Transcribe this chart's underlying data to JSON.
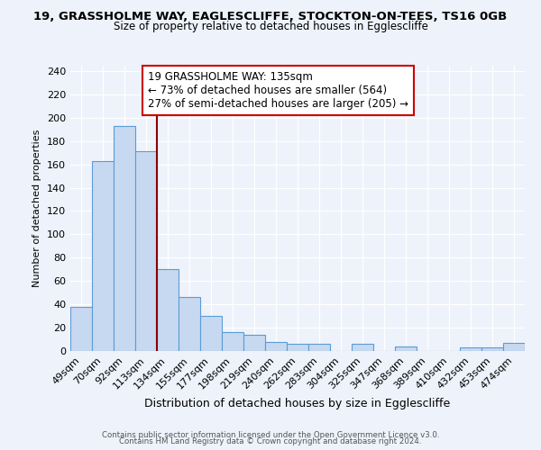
{
  "title1": "19, GRASSHOLME WAY, EAGLESCLIFFE, STOCKTON-ON-TEES, TS16 0GB",
  "title2": "Size of property relative to detached houses in Egglescliffe",
  "xlabel": "Distribution of detached houses by size in Egglescliffe",
  "ylabel": "Number of detached properties",
  "bar_labels": [
    "49sqm",
    "70sqm",
    "92sqm",
    "113sqm",
    "134sqm",
    "155sqm",
    "177sqm",
    "198sqm",
    "219sqm",
    "240sqm",
    "262sqm",
    "283sqm",
    "304sqm",
    "325sqm",
    "347sqm",
    "368sqm",
    "389sqm",
    "410sqm",
    "432sqm",
    "453sqm",
    "474sqm"
  ],
  "bar_values": [
    38,
    163,
    193,
    171,
    70,
    46,
    30,
    16,
    14,
    8,
    6,
    6,
    0,
    6,
    0,
    4,
    0,
    0,
    3,
    3,
    7
  ],
  "bar_color": "#c7d9f0",
  "bar_edge_color": "#5b9bd5",
  "property_line_x": 4.0,
  "property_line_color": "#8b0000",
  "annotation_title": "19 GRASSHOLME WAY: 135sqm",
  "annotation_line1": "← 73% of detached houses are smaller (564)",
  "annotation_line2": "27% of semi-detached houses are larger (205) →",
  "annotation_box_color": "#ffffff",
  "annotation_box_edge": "#cc0000",
  "ylim": [
    0,
    245
  ],
  "yticks": [
    0,
    20,
    40,
    60,
    80,
    100,
    120,
    140,
    160,
    180,
    200,
    220,
    240
  ],
  "footer1": "Contains HM Land Registry data © Crown copyright and database right 2024.",
  "footer2": "Contains public sector information licensed under the Open Government Licence v3.0.",
  "bg_color": "#edf2fb"
}
